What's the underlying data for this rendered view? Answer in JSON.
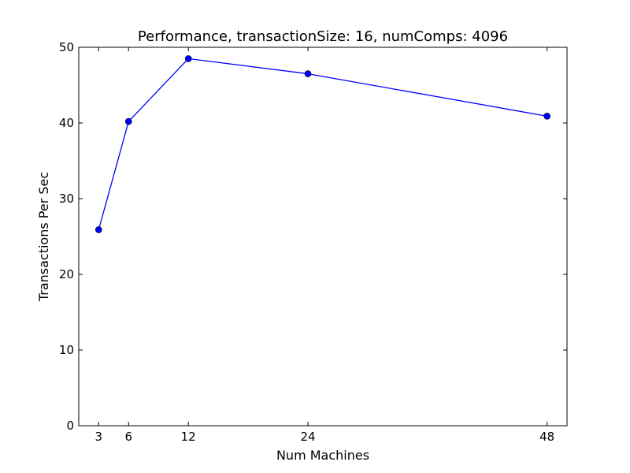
{
  "chart_data": {
    "type": "line",
    "title": "Performance, transactionSize: 16, numComps: 4096",
    "xlabel": "Num Machines",
    "ylabel": "Transactions Per Sec",
    "x": [
      3,
      6,
      12,
      24,
      48
    ],
    "xticks": [
      3,
      6,
      12,
      24,
      48
    ],
    "yticks": [
      0,
      10,
      20,
      30,
      40,
      50
    ],
    "xlim": [
      1,
      50
    ],
    "ylim": [
      0,
      50
    ],
    "grid": false,
    "series": [
      {
        "values": [
          25.9,
          40.2,
          48.5,
          46.5,
          40.9
        ],
        "color": "#0000ff",
        "marker": "circle"
      }
    ]
  }
}
